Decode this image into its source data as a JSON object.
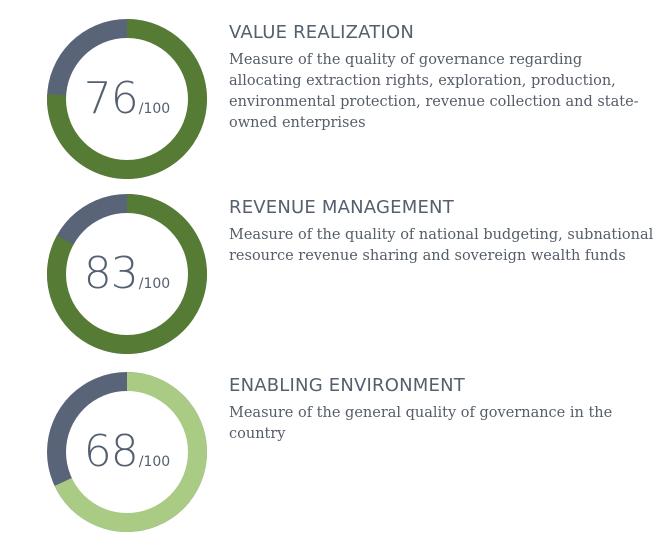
{
  "chart_data": {
    "type": "pie",
    "max_label": "/100",
    "colors": {
      "track": "#5a6478",
      "center": "#ffffff"
    },
    "items": [
      {
        "score": 76,
        "title": "VALUE REALIZATION",
        "description": "Measure of the quality of governance regarding allocating extraction rights, exploration, production, environmental protection, revenue collection and state-owned enterprises",
        "color": "#557b34"
      },
      {
        "score": 83,
        "title": "REVENUE MANAGEMENT",
        "description": "Measure of the quality of national budgeting, subnational resource revenue sharing and sovereign wealth funds",
        "color": "#557b34"
      },
      {
        "score": 68,
        "title": "ENABLING ENVIRONMENT",
        "description": "Measure of the general quality of governance in the country",
        "color": "#a9cb84"
      }
    ]
  }
}
